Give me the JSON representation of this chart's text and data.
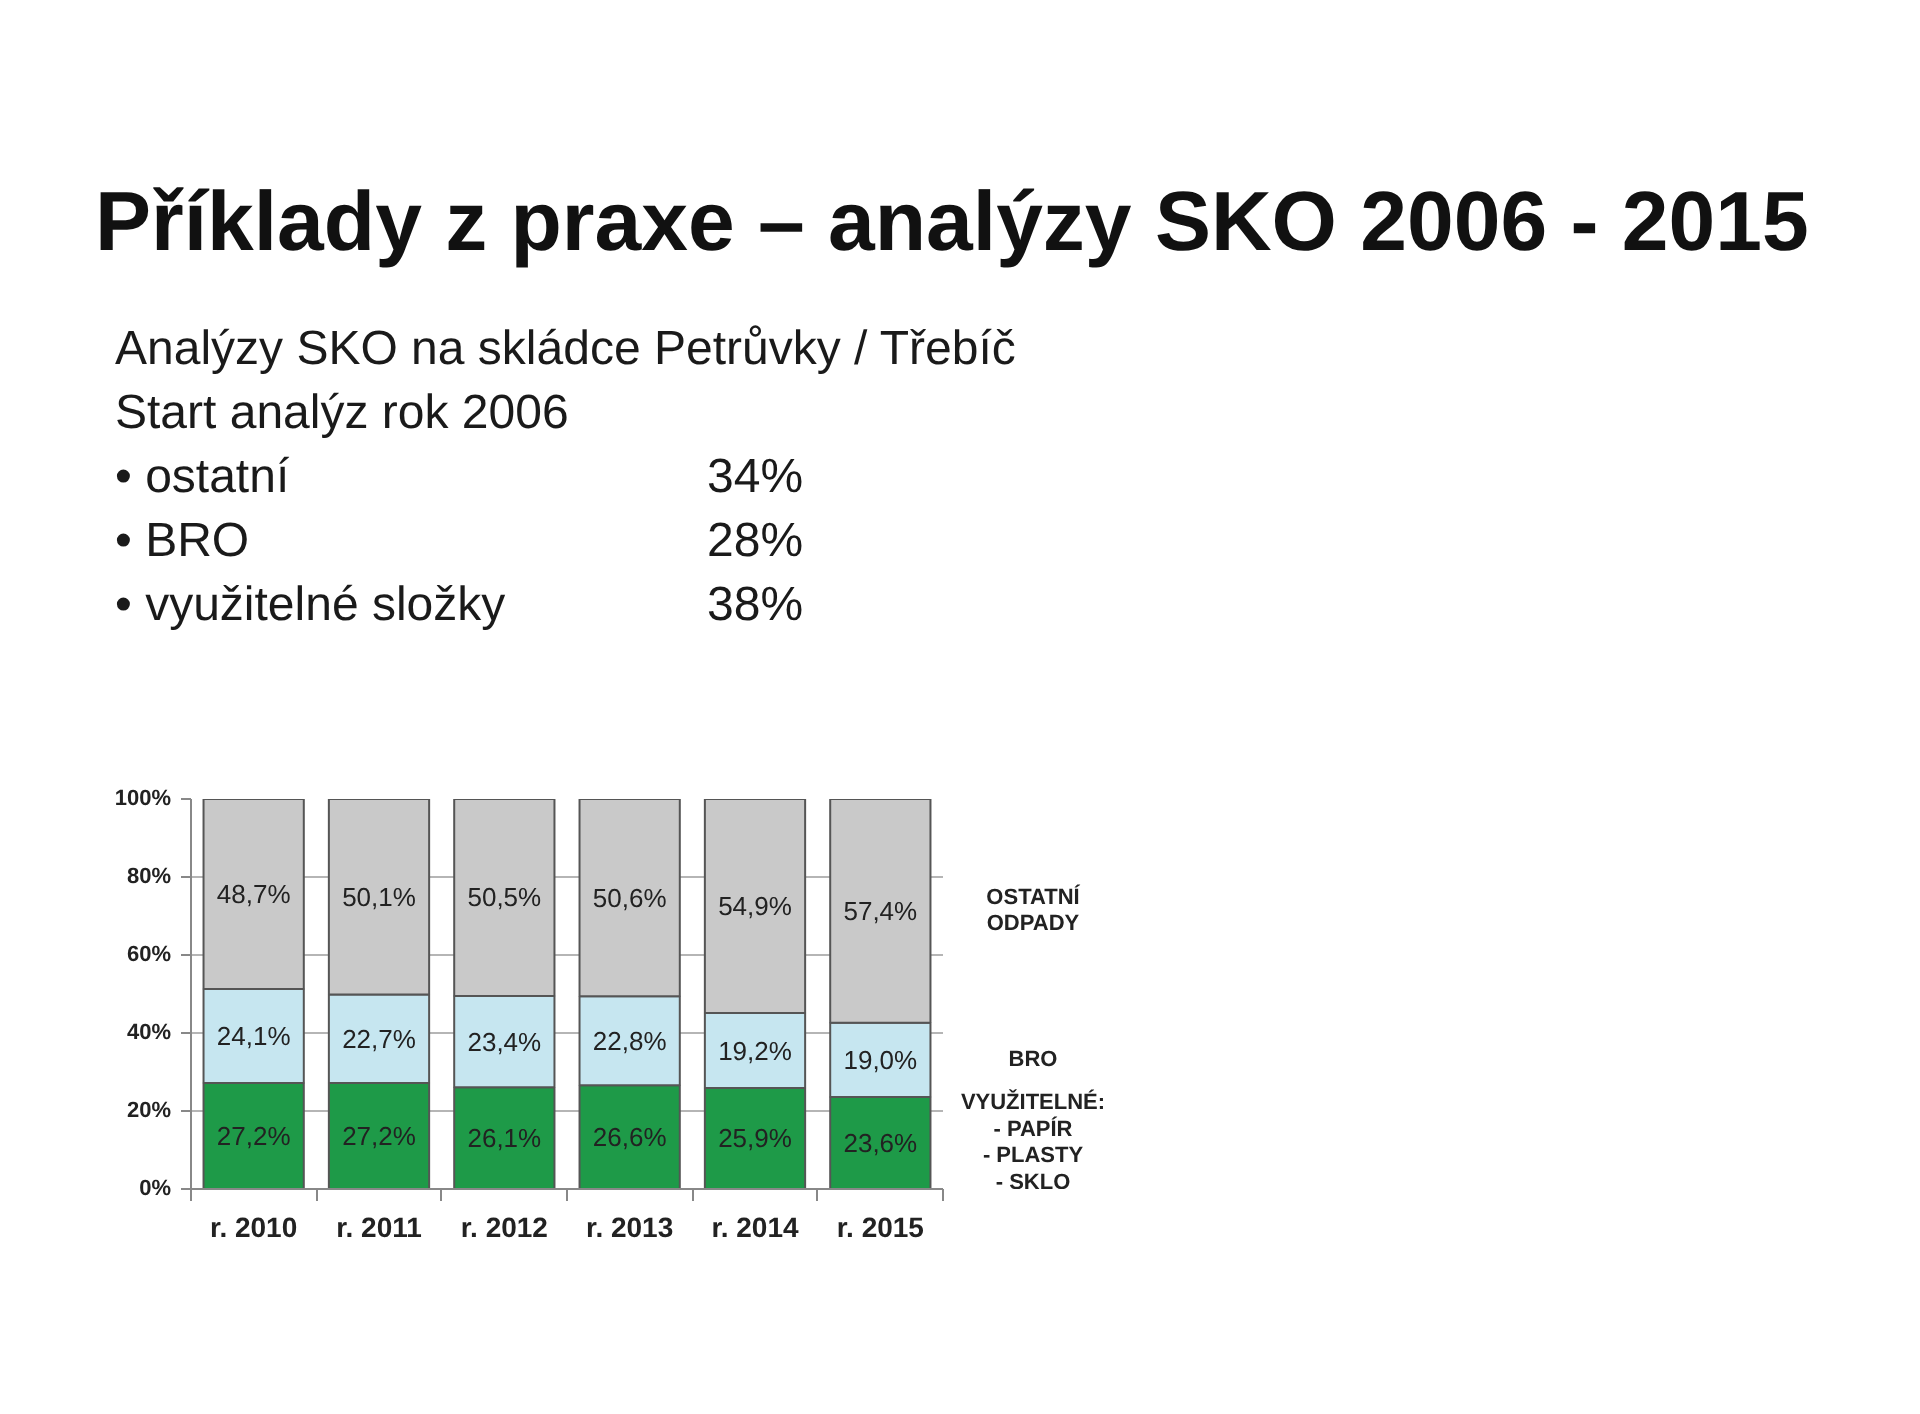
{
  "chart_data": {
    "type": "bar",
    "title": "Příklady z praxe – analýzy SKO 2006 - 2015",
    "subtitle": "Analýzy SKO na skládce Petrůvky / Třebíč",
    "annotations": [
      "Start analýz rok 2006",
      "• ostatní 34%",
      "• BRO 28%",
      "• využitelné složky 38%"
    ],
    "categories": [
      "r. 2010",
      "r. 2011",
      "r. 2012",
      "r. 2013",
      "r. 2014",
      "r. 2015"
    ],
    "stacked": true,
    "series": [
      {
        "name": "VYUŽITELNÉ:\n- PAPÍR\n- PLASTY\n- SKLO",
        "color": "#1e9a48",
        "values": [
          27.2,
          27.2,
          26.1,
          26.6,
          25.9,
          23.6
        ],
        "value_labels": [
          "27,2%",
          "27,2%",
          "26,1%",
          "26,6%",
          "25,9%",
          "23,6%"
        ]
      },
      {
        "name": "BRO",
        "color": "#c6e6f0",
        "values": [
          24.1,
          22.7,
          23.4,
          22.8,
          19.2,
          19.0
        ],
        "value_labels": [
          "24,1%",
          "22,7%",
          "23,4%",
          "22,8%",
          "19,2%",
          "19,0%"
        ]
      },
      {
        "name": "OSTATNÍ\nODPADY",
        "color": "#c9c9c9",
        "values": [
          48.7,
          50.1,
          50.5,
          50.6,
          54.9,
          57.4
        ],
        "value_labels": [
          "48,7%",
          "50,1%",
          "50,5%",
          "50,6%",
          "54,9%",
          "57,4%"
        ]
      }
    ],
    "ylim": [
      0,
      100
    ],
    "yticks": [
      {
        "value": 0,
        "label": "0%"
      },
      {
        "value": 20,
        "label": "20%"
      },
      {
        "value": 40,
        "label": "40%"
      },
      {
        "value": 60,
        "label": "60%"
      },
      {
        "value": 80,
        "label": "80%"
      },
      {
        "value": 100,
        "label": "100%"
      }
    ],
    "grid": "y"
  }
}
